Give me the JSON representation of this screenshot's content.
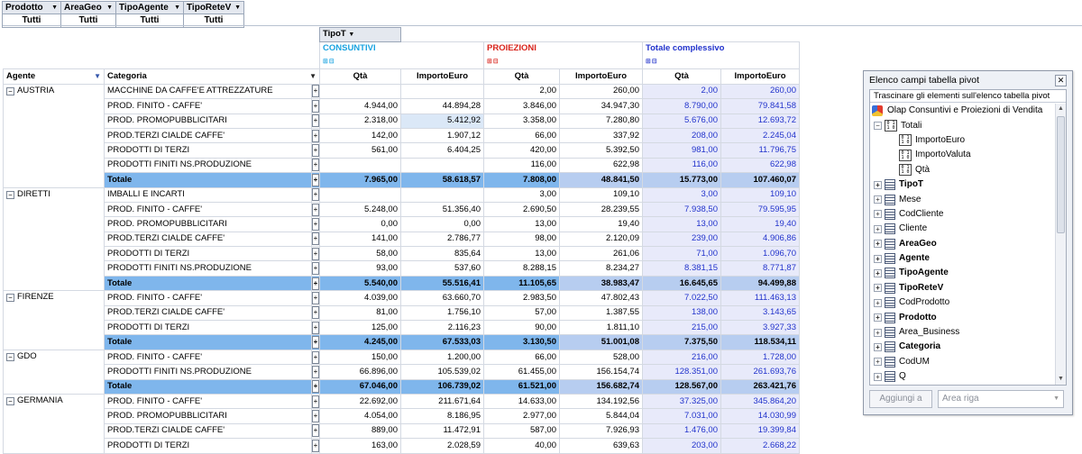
{
  "filters": [
    {
      "field": "Prodotto",
      "value": "Tutti"
    },
    {
      "field": "AreaGeo",
      "value": "Tutti"
    },
    {
      "field": "TipoAgente",
      "value": "Tutti"
    },
    {
      "field": "TipoReteV",
      "value": "Tutti"
    }
  ],
  "pivot": {
    "column_field": "TipoT",
    "col_groups": {
      "consuntivi": "CONSUNTIVI",
      "proiezioni": "PROIEZIONI",
      "totale": "Totale complessivo"
    },
    "row_headers": {
      "agent": "Agente",
      "category": "Categoria"
    },
    "measure_headers": {
      "qty": "Qtà",
      "amount": "ImportoEuro"
    },
    "groups": [
      {
        "agent": "AUSTRIA",
        "rows": [
          {
            "cat": "MACCHINE DA CAFFE'E ATTREZZATURE",
            "v": [
              "",
              "",
              "2,00",
              "260,00",
              "2,00",
              "260,00"
            ]
          },
          {
            "cat": "PROD. FINITO - CAFFE'",
            "v": [
              "4.944,00",
              "44.894,28",
              "3.846,00",
              "34.947,30",
              "8.790,00",
              "79.841,58"
            ]
          },
          {
            "cat": "PROD. PROMOPUBBLICITARI",
            "v": [
              "2.318,00",
              "5.412,92",
              "3.358,00",
              "7.280,80",
              "5.676,00",
              "12.693,72"
            ]
          },
          {
            "cat": "PROD.TERZI CIALDE CAFFE'",
            "v": [
              "142,00",
              "1.907,12",
              "66,00",
              "337,92",
              "208,00",
              "2.245,04"
            ]
          },
          {
            "cat": "PRODOTTI DI TERZI",
            "v": [
              "561,00",
              "6.404,25",
              "420,00",
              "5.392,50",
              "981,00",
              "11.796,75"
            ]
          },
          {
            "cat": "PRODOTTI FINITI NS.PRODUZIONE",
            "v": [
              "",
              "",
              "116,00",
              "622,98",
              "116,00",
              "622,98"
            ]
          }
        ],
        "total": {
          "label": "Totale",
          "v": [
            "7.965,00",
            "58.618,57",
            "7.808,00",
            "48.841,50",
            "15.773,00",
            "107.460,07"
          ]
        }
      },
      {
        "agent": "DIRETTI",
        "rows": [
          {
            "cat": "IMBALLI E INCARTI",
            "v": [
              "",
              "",
              "3,00",
              "109,10",
              "3,00",
              "109,10"
            ]
          },
          {
            "cat": "PROD. FINITO - CAFFE'",
            "v": [
              "5.248,00",
              "51.356,40",
              "2.690,50",
              "28.239,55",
              "7.938,50",
              "79.595,95"
            ]
          },
          {
            "cat": "PROD. PROMOPUBBLICITARI",
            "v": [
              "0,00",
              "0,00",
              "13,00",
              "19,40",
              "13,00",
              "19,40"
            ]
          },
          {
            "cat": "PROD.TERZI CIALDE CAFFE'",
            "v": [
              "141,00",
              "2.786,77",
              "98,00",
              "2.120,09",
              "239,00",
              "4.906,86"
            ]
          },
          {
            "cat": "PRODOTTI DI TERZI",
            "v": [
              "58,00",
              "835,64",
              "13,00",
              "261,06",
              "71,00",
              "1.096,70"
            ]
          },
          {
            "cat": "PRODOTTI FINITI NS.PRODUZIONE",
            "v": [
              "93,00",
              "537,60",
              "8.288,15",
              "8.234,27",
              "8.381,15",
              "8.771,87"
            ]
          }
        ],
        "total": {
          "label": "Totale",
          "v": [
            "5.540,00",
            "55.516,41",
            "11.105,65",
            "38.983,47",
            "16.645,65",
            "94.499,88"
          ]
        }
      },
      {
        "agent": "FIRENZE",
        "rows": [
          {
            "cat": "PROD. FINITO - CAFFE'",
            "v": [
              "4.039,00",
              "63.660,70",
              "2.983,50",
              "47.802,43",
              "7.022,50",
              "111.463,13"
            ]
          },
          {
            "cat": "PROD.TERZI CIALDE CAFFE'",
            "v": [
              "81,00",
              "1.756,10",
              "57,00",
              "1.387,55",
              "138,00",
              "3.143,65"
            ]
          },
          {
            "cat": "PRODOTTI DI TERZI",
            "v": [
              "125,00",
              "2.116,23",
              "90,00",
              "1.811,10",
              "215,00",
              "3.927,33"
            ]
          }
        ],
        "total": {
          "label": "Totale",
          "v": [
            "4.245,00",
            "67.533,03",
            "3.130,50",
            "51.001,08",
            "7.375,50",
            "118.534,11"
          ]
        }
      },
      {
        "agent": "GDO",
        "rows": [
          {
            "cat": "PROD. FINITO - CAFFE'",
            "v": [
              "150,00",
              "1.200,00",
              "66,00",
              "528,00",
              "216,00",
              "1.728,00"
            ]
          },
          {
            "cat": "PRODOTTI FINITI NS.PRODUZIONE",
            "v": [
              "66.896,00",
              "105.539,02",
              "61.455,00",
              "156.154,74",
              "128.351,00",
              "261.693,76"
            ]
          }
        ],
        "total": {
          "label": "Totale",
          "v": [
            "67.046,00",
            "106.739,02",
            "61.521,00",
            "156.682,74",
            "128.567,00",
            "263.421,76"
          ]
        }
      },
      {
        "agent": "GERMANIA",
        "rows": [
          {
            "cat": "PROD. FINITO - CAFFE'",
            "v": [
              "22.692,00",
              "211.671,64",
              "14.633,00",
              "134.192,56",
              "37.325,00",
              "345.864,20"
            ]
          },
          {
            "cat": "PROD. PROMOPUBBLICITARI",
            "v": [
              "4.054,00",
              "8.186,95",
              "2.977,00",
              "5.844,04",
              "7.031,00",
              "14.030,99"
            ]
          },
          {
            "cat": "PROD.TERZI CIALDE CAFFE'",
            "v": [
              "889,00",
              "11.472,91",
              "587,00",
              "7.926,93",
              "1.476,00",
              "19.399,84"
            ]
          },
          {
            "cat": "PRODOTTI DI TERZI",
            "v": [
              "163,00",
              "2.028,59",
              "40,00",
              "639,63",
              "203,00",
              "2.668,22"
            ]
          }
        ],
        "total": null
      }
    ]
  },
  "field_list": {
    "title": "Elenco campi tabella pivot",
    "hint": "Trascinare gli elementi sull'elenco tabella pivot",
    "root": "Olap Consuntivi e Proiezioni di Vendita",
    "totals": {
      "label": "Totali",
      "children": [
        "ImportoEuro",
        "ImportoValuta",
        "Qtà"
      ]
    },
    "fields": [
      {
        "label": "TipoT",
        "bold": true
      },
      {
        "label": "Mese",
        "bold": false
      },
      {
        "label": "CodCliente",
        "bold": false
      },
      {
        "label": "Cliente",
        "bold": false
      },
      {
        "label": "AreaGeo",
        "bold": true
      },
      {
        "label": "Agente",
        "bold": true
      },
      {
        "label": "TipoAgente",
        "bold": true
      },
      {
        "label": "TipoReteV",
        "bold": true
      },
      {
        "label": "CodProdotto",
        "bold": false
      },
      {
        "label": "Prodotto",
        "bold": true
      },
      {
        "label": "Area_Business",
        "bold": false
      },
      {
        "label": "Categoria",
        "bold": true
      },
      {
        "label": "CodUM",
        "bold": false
      },
      {
        "label": "Q",
        "bold": false
      }
    ],
    "add_button": "Aggiungi a",
    "area_select": "Area riga"
  }
}
